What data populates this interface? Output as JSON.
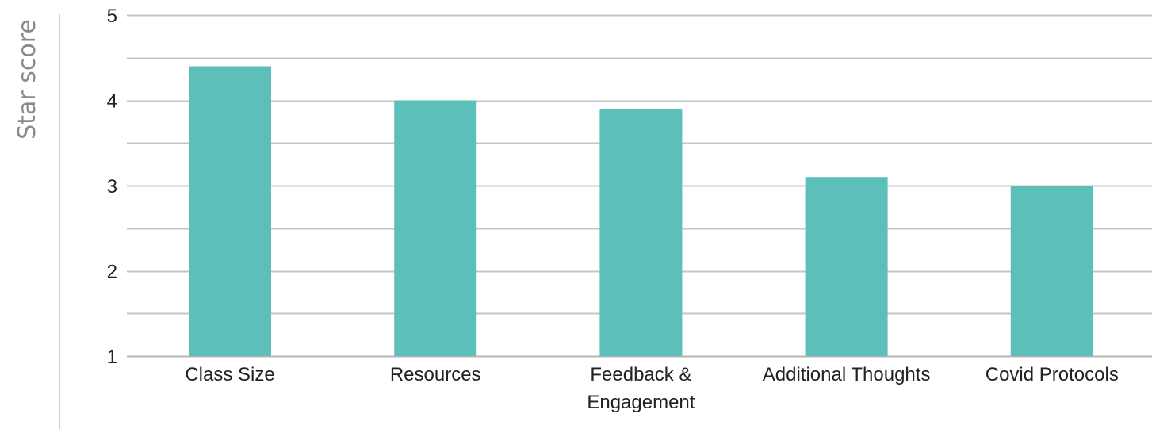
{
  "chart_data": {
    "type": "bar",
    "categories": [
      "Class Size",
      "Resources",
      "Feedback & Engagement",
      "Additional Thoughts",
      "Covid Protocols"
    ],
    "category_lines": [
      [
        "Class Size"
      ],
      [
        "Resources"
      ],
      [
        "Feedback &",
        "Engagement"
      ],
      [
        "Additional Thoughts"
      ],
      [
        "Covid Protocols"
      ]
    ],
    "values": [
      4.4,
      4.0,
      3.9,
      3.1,
      3.0
    ],
    "title": "",
    "xlabel": "",
    "ylabel": "Star score",
    "ylim": [
      1,
      5
    ],
    "yticks": [
      1,
      2,
      3,
      4,
      5
    ],
    "grid": true,
    "bar_color": "#5dbfba",
    "grid_color": "#c4c4c4"
  }
}
